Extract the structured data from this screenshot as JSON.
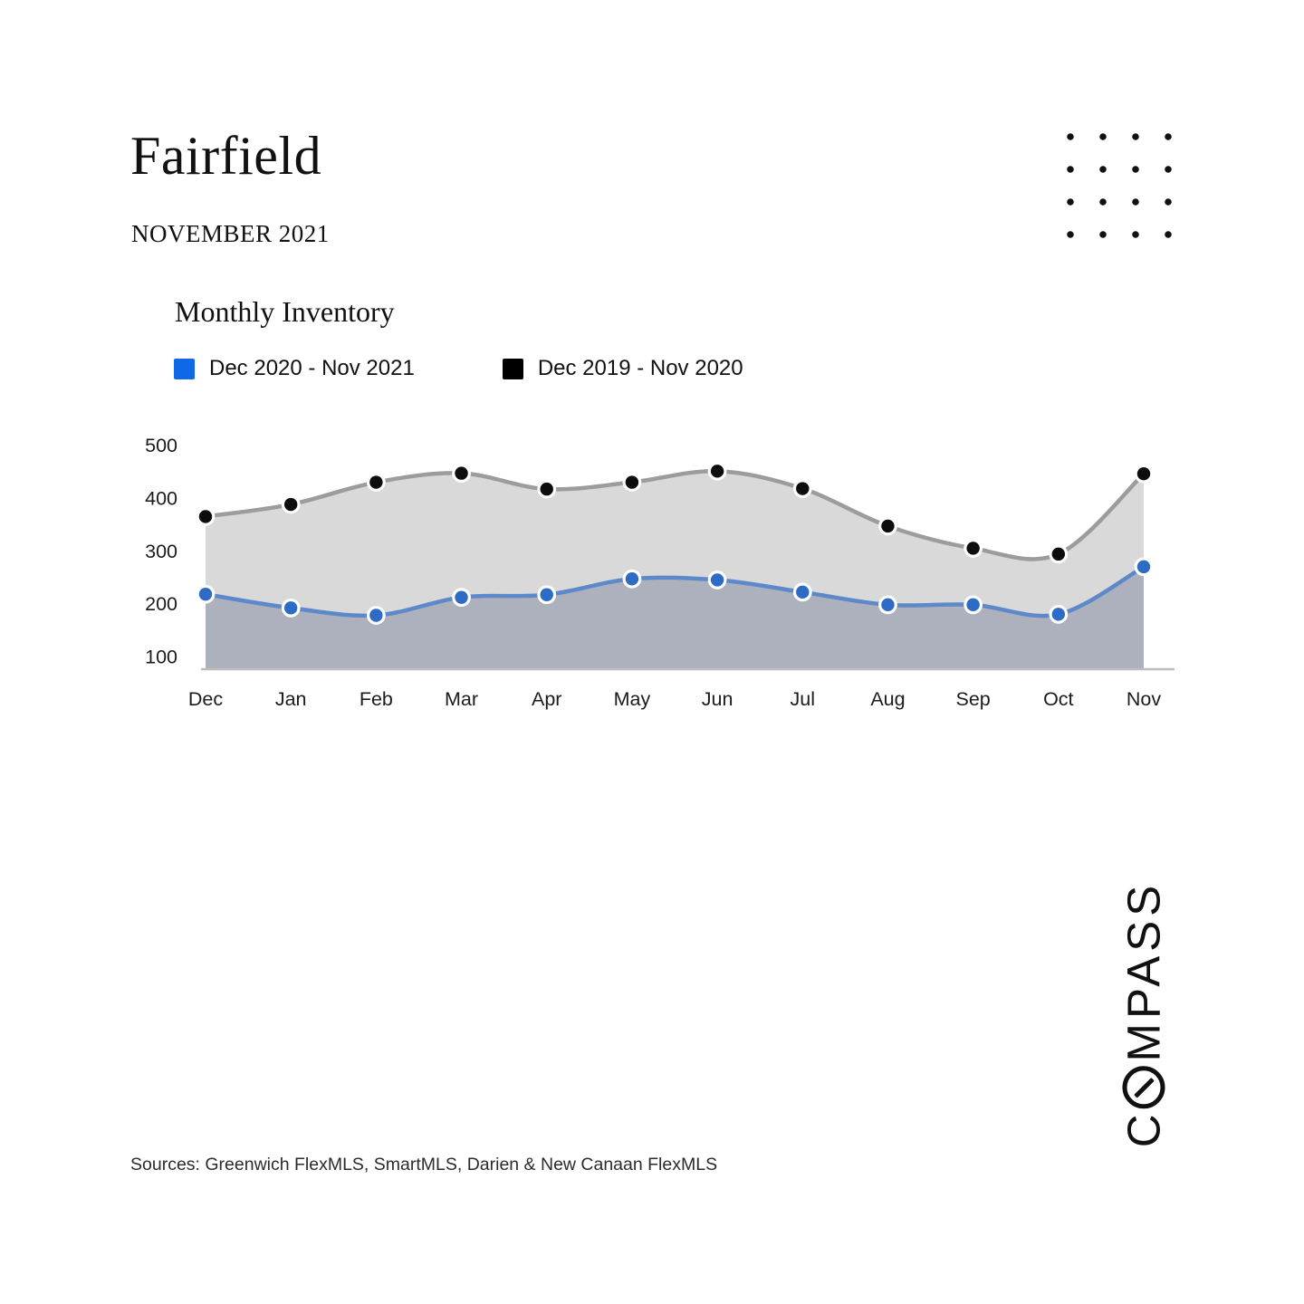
{
  "header": {
    "title": "Fairfield",
    "subtitle": "NOVEMBER 2021"
  },
  "chart": {
    "title": "Monthly Inventory"
  },
  "chart_data": {
    "type": "area",
    "title": "Monthly Inventory",
    "categories": [
      "Dec",
      "Jan",
      "Feb",
      "Mar",
      "Apr",
      "May",
      "Jun",
      "Jul",
      "Aug",
      "Sep",
      "Oct",
      "Nov"
    ],
    "series": [
      {
        "name": "Dec 2020 - Nov 2021",
        "values": [
          218,
          192,
          178,
          212,
          217,
          247,
          245,
          222,
          198,
          198,
          180,
          270
        ],
        "line_color": "#5d88c9",
        "dot_color": "#2e6bc4",
        "fill_color": "#acb1bd",
        "legend_color": "#0f68e6"
      },
      {
        "name": "Dec 2019 - Nov 2020",
        "values": [
          365,
          388,
          430,
          447,
          417,
          430,
          451,
          418,
          347,
          305,
          294,
          446
        ],
        "line_color": "#9c9c9c",
        "dot_color": "#0d0d0d",
        "fill_color": "#d9d9d9",
        "legend_color": "#000000"
      }
    ],
    "xlabel": "",
    "ylabel": "",
    "ylim": [
      100,
      500
    ],
    "yticks": [
      100,
      200,
      300,
      400,
      500
    ],
    "grid": false,
    "legend_position": "top",
    "axis_color": "#bdbdbd",
    "tick_label_color": "#1b1b1b"
  },
  "footer": {
    "sources": "Sources: Greenwich FlexMLS, SmartMLS, Darien & New Canaan FlexMLS"
  },
  "logo": {
    "name": "COMPASS",
    "before_o": "C",
    "after_o": "MPASS"
  }
}
